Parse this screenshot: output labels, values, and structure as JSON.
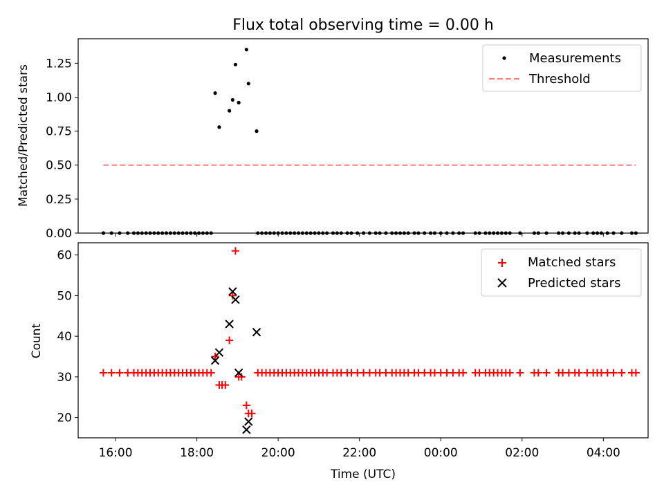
{
  "chart_data": [
    {
      "type": "scatter",
      "title": "Flux total observing time = 0.00 h",
      "xlabel": "",
      "ylabel": "Matched/Predicted stars",
      "ylim": [
        0,
        1.43
      ],
      "yticks": [
        "0.00",
        "0.25",
        "0.50",
        "0.75",
        "1.00",
        "1.25"
      ],
      "ytick_values": [
        0,
        0.25,
        0.5,
        0.75,
        1.0,
        1.25
      ],
      "legend_position": "top-right",
      "series": [
        {
          "name": "Measurements",
          "kind": "points",
          "color": "#000000",
          "points": [
            [
              18.45,
              1.03
            ],
            [
              18.55,
              0.78
            ],
            [
              18.8,
              0.9
            ],
            [
              18.88,
              0.98
            ],
            [
              18.95,
              1.24
            ],
            [
              19.03,
              0.96
            ],
            [
              19.22,
              1.35
            ],
            [
              19.27,
              1.1
            ],
            [
              19.47,
              0.75
            ]
          ]
        },
        {
          "name": "Threshold",
          "kind": "dashed-line",
          "color": "#ff7f7f",
          "x": [
            15.7,
            28.8
          ],
          "y": [
            0.5,
            0.5
          ]
        }
      ]
    },
    {
      "type": "scatter",
      "title": "",
      "xlabel": "Time (UTC)",
      "ylabel": "Count",
      "ylim": [
        15,
        63
      ],
      "yticks": [
        "20",
        "30",
        "40",
        "50",
        "60"
      ],
      "ytick_values": [
        20,
        30,
        40,
        50,
        60
      ],
      "legend_position": "top-right",
      "series": [
        {
          "name": "Matched stars",
          "marker": "plus",
          "color": "#ff0000",
          "points": [
            [
              18.45,
              35
            ],
            [
              18.55,
              28
            ],
            [
              18.62,
              28
            ],
            [
              18.7,
              28
            ],
            [
              18.8,
              39
            ],
            [
              18.88,
              50
            ],
            [
              18.95,
              61
            ],
            [
              19.03,
              30
            ],
            [
              19.1,
              30
            ],
            [
              19.22,
              23
            ],
            [
              19.27,
              21
            ],
            [
              19.35,
              21
            ]
          ]
        },
        {
          "name": "Predicted stars",
          "marker": "x",
          "color": "#000000",
          "points": [
            [
              18.45,
              34
            ],
            [
              18.55,
              36
            ],
            [
              18.8,
              43
            ],
            [
              18.88,
              51
            ],
            [
              18.95,
              49
            ],
            [
              19.03,
              31
            ],
            [
              19.22,
              17
            ],
            [
              19.27,
              19
            ],
            [
              19.47,
              41
            ]
          ]
        }
      ]
    }
  ],
  "x_axis": {
    "unit": "hours UTC",
    "range": [
      15.08,
      29.1
    ],
    "tick_values": [
      16,
      18,
      20,
      22,
      24,
      26,
      28
    ],
    "tick_labels": [
      "16:00",
      "18:00",
      "20:00",
      "22:00",
      "00:00",
      "02:00",
      "04:00"
    ]
  },
  "baseline_times": [
    15.7,
    15.9,
    16.1,
    16.3,
    16.45,
    16.55,
    16.65,
    16.75,
    16.85,
    16.95,
    17.05,
    17.15,
    17.25,
    17.35,
    17.45,
    17.55,
    17.65,
    17.75,
    17.85,
    17.95,
    18.05,
    18.15,
    18.25,
    18.35,
    19.5,
    19.6,
    19.7,
    19.8,
    19.9,
    20.0,
    20.1,
    20.2,
    20.3,
    20.4,
    20.5,
    20.6,
    20.7,
    20.8,
    20.9,
    21.0,
    21.1,
    21.2,
    21.35,
    21.45,
    21.55,
    21.7,
    21.8,
    21.95,
    22.1,
    22.25,
    22.4,
    22.5,
    22.65,
    22.8,
    22.9,
    23.0,
    23.1,
    23.2,
    23.35,
    23.45,
    23.6,
    23.75,
    23.85,
    24.0,
    24.15,
    24.3,
    24.45,
    24.55,
    24.85,
    24.95,
    25.1,
    25.2,
    25.3,
    25.4,
    25.5,
    25.6,
    25.7,
    25.95,
    26.3,
    26.4,
    26.6,
    26.9,
    27.0,
    27.15,
    27.3,
    27.4,
    27.6,
    27.75,
    27.85,
    27.95,
    28.1,
    28.25,
    28.45,
    28.7,
    28.8
  ],
  "baseline_ratio": 0.0,
  "baseline_count": 31
}
